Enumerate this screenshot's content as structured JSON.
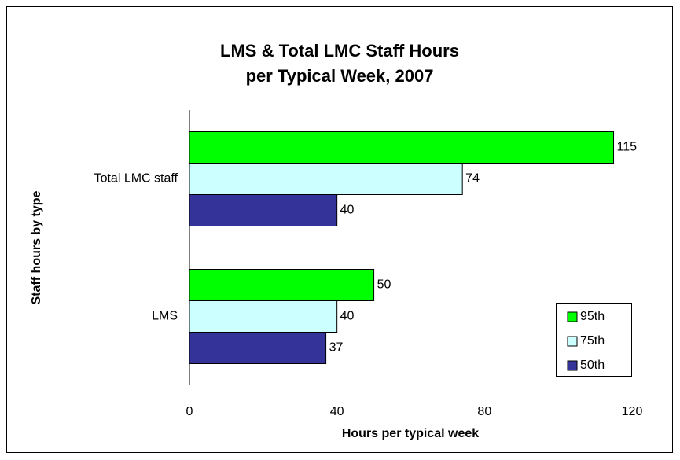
{
  "chart_data": {
    "type": "barh",
    "title": [
      "LMS & Total LMC Staff Hours",
      "per Typical Week, 2007"
    ],
    "xlabel": "Hours per typical week",
    "ylabel": "Staff hours by type",
    "categories": [
      "Total LMC staff",
      "LMS"
    ],
    "series": [
      {
        "name": "95th",
        "color": "#00ff00",
        "values": [
          115,
          50
        ]
      },
      {
        "name": "75th",
        "color": "#ccffff",
        "values": [
          74,
          40
        ]
      },
      {
        "name": "50th",
        "color": "#333399",
        "values": [
          40,
          37
        ]
      }
    ],
    "xlim": [
      0,
      120
    ],
    "xticks": [
      0,
      40,
      80,
      120
    ],
    "grid": false,
    "legend": "lower right"
  }
}
